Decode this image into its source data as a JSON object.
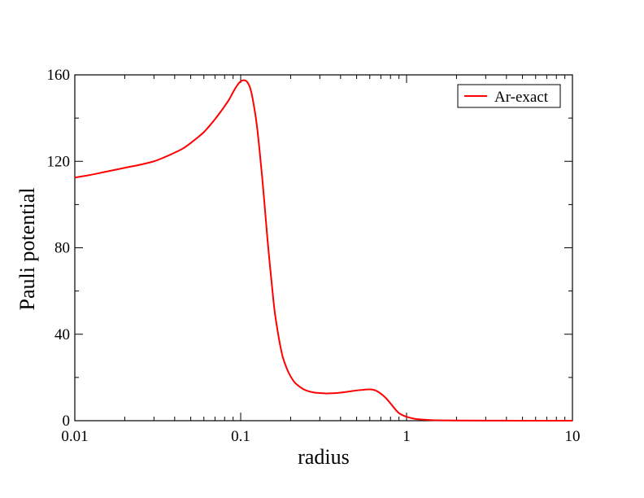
{
  "chart_data": {
    "type": "line",
    "xlabel": "radius",
    "ylabel": "Pauli potential",
    "xscale": "log",
    "xlim": [
      0.01,
      10
    ],
    "ylim": [
      0,
      160
    ],
    "x_ticks": [
      "0.01",
      "0.1",
      "1",
      "10"
    ],
    "y_ticks": [
      "0",
      "40",
      "80",
      "120",
      "160"
    ],
    "grid": false,
    "legend_position": "top-right",
    "series": [
      {
        "name": "Ar-exact",
        "color": "#ff0000",
        "x": [
          0.01,
          0.012,
          0.015,
          0.02,
          0.025,
          0.03,
          0.035,
          0.04,
          0.045,
          0.05,
          0.055,
          0.06,
          0.065,
          0.07,
          0.075,
          0.08,
          0.085,
          0.09,
          0.095,
          0.1,
          0.105,
          0.11,
          0.115,
          0.12,
          0.125,
          0.13,
          0.135,
          0.14,
          0.145,
          0.15,
          0.155,
          0.16,
          0.165,
          0.17,
          0.175,
          0.18,
          0.19,
          0.2,
          0.21,
          0.22,
          0.24,
          0.26,
          0.28,
          0.3,
          0.33,
          0.36,
          0.4,
          0.45,
          0.5,
          0.55,
          0.6,
          0.65,
          0.7,
          0.75,
          0.8,
          0.85,
          0.9,
          0.95,
          1.0,
          1.1,
          1.2,
          1.4,
          1.7,
          2,
          3,
          5,
          7,
          10
        ],
        "values": [
          112.5,
          113.5,
          115,
          117,
          118.5,
          120,
          122,
          124,
          126,
          128.5,
          131,
          133.5,
          136.5,
          139.5,
          142.5,
          145.5,
          148.5,
          152,
          155,
          157,
          157.5,
          156.5,
          153,
          146,
          137,
          125,
          112,
          98,
          84,
          72,
          61,
          51,
          44,
          38,
          33,
          29,
          24,
          20.5,
          18,
          16.5,
          14.5,
          13.5,
          13,
          12.8,
          12.6,
          12.7,
          13,
          13.5,
          14,
          14.3,
          14.5,
          14,
          12.5,
          10.5,
          8,
          5.5,
          3.5,
          2.5,
          1.8,
          1.0,
          0.6,
          0.3,
          0.15,
          0.1,
          0.05,
          0.02,
          0.01,
          0
        ]
      }
    ]
  }
}
